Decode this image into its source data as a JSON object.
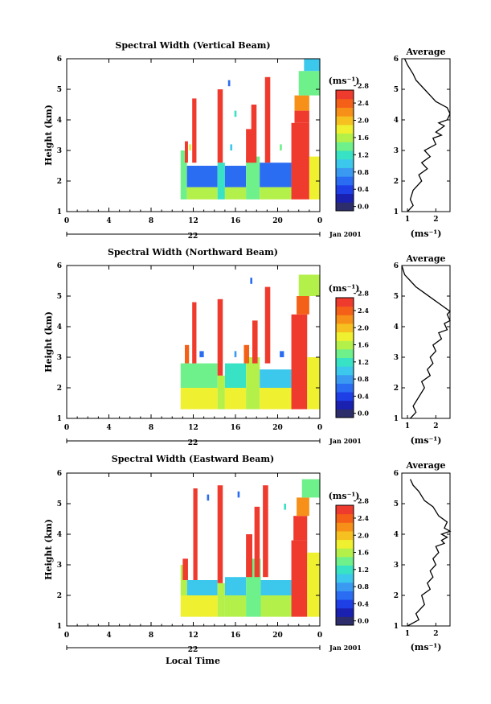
{
  "chart_data": [
    {
      "type": "heatmap",
      "title": "Spectral Width (Vertical Beam)",
      "ylabel": "Height (km)",
      "x_ticks": [
        "0",
        "4",
        "8",
        "12",
        "16",
        "20",
        "0"
      ],
      "y_ticks": [
        "1",
        "2",
        "3",
        "4",
        "5",
        "6"
      ],
      "ylim": [
        1,
        6
      ],
      "xlim": [
        0,
        24
      ],
      "date_label": "22",
      "month_label": "Jan 2001",
      "cells": [
        {
          "x0": 10.8,
          "x1": 11.4,
          "y0": 1.4,
          "y1": 3.0,
          "v": 1.4
        },
        {
          "x0": 11.4,
          "x1": 14.3,
          "y0": 1.4,
          "y1": 1.8,
          "v": 1.6
        },
        {
          "x0": 11.4,
          "x1": 14.3,
          "y0": 1.8,
          "y1": 2.5,
          "v": 0.7
        },
        {
          "x0": 14.3,
          "x1": 15.0,
          "y0": 1.4,
          "y1": 2.6,
          "v": 1.2
        },
        {
          "x0": 15.0,
          "x1": 17.0,
          "y0": 1.4,
          "y1": 1.8,
          "v": 1.6
        },
        {
          "x0": 15.0,
          "x1": 17.0,
          "y0": 1.8,
          "y1": 2.5,
          "v": 0.7
        },
        {
          "x0": 17.0,
          "x1": 18.3,
          "y0": 1.4,
          "y1": 2.8,
          "v": 1.3
        },
        {
          "x0": 18.3,
          "x1": 21.3,
          "y0": 1.4,
          "y1": 1.8,
          "v": 1.5
        },
        {
          "x0": 18.3,
          "x1": 21.3,
          "y0": 1.8,
          "y1": 2.6,
          "v": 0.7
        },
        {
          "x0": 21.3,
          "x1": 23.0,
          "y0": 1.4,
          "y1": 3.9,
          "v": 2.8
        },
        {
          "x0": 21.6,
          "x1": 23.0,
          "y0": 3.9,
          "y1": 4.3,
          "v": 2.5
        },
        {
          "x0": 21.6,
          "x1": 23.0,
          "y0": 4.3,
          "y1": 4.8,
          "v": 2.1
        },
        {
          "x0": 22.0,
          "x1": 24.0,
          "y0": 4.8,
          "y1": 5.6,
          "v": 1.3
        },
        {
          "x0": 22.5,
          "x1": 24.0,
          "y0": 5.6,
          "y1": 6.0,
          "v": 0.9
        },
        {
          "x0": 23.0,
          "x1": 24.0,
          "y0": 1.4,
          "y1": 2.8,
          "v": 1.8
        },
        {
          "x0": 11.9,
          "x1": 12.3,
          "y0": 2.6,
          "y1": 4.7,
          "v": 2.8
        },
        {
          "x0": 11.2,
          "x1": 11.5,
          "y0": 2.6,
          "y1": 3.3,
          "v": 2.6
        },
        {
          "x0": 14.3,
          "x1": 14.8,
          "y0": 2.6,
          "y1": 5.0,
          "v": 2.8
        },
        {
          "x0": 17.0,
          "x1": 17.6,
          "y0": 2.6,
          "y1": 3.7,
          "v": 2.6
        },
        {
          "x0": 17.5,
          "x1": 18.0,
          "y0": 2.6,
          "y1": 4.5,
          "v": 2.8
        },
        {
          "x0": 18.8,
          "x1": 19.3,
          "y0": 2.6,
          "y1": 5.4,
          "v": 2.8
        },
        {
          "x0": 15.9,
          "x1": 16.1,
          "y0": 4.1,
          "y1": 4.3,
          "v": 1.1
        },
        {
          "x0": 15.5,
          "x1": 15.7,
          "y0": 3.0,
          "y1": 3.2,
          "v": 0.9
        },
        {
          "x0": 15.3,
          "x1": 15.5,
          "y0": 5.1,
          "y1": 5.3,
          "v": 0.5
        },
        {
          "x0": 20.2,
          "x1": 20.4,
          "y0": 3.0,
          "y1": 3.2,
          "v": 1.4
        },
        {
          "x0": 11.6,
          "x1": 11.8,
          "y0": 3.0,
          "y1": 3.2,
          "v": 1.8
        }
      ]
    },
    {
      "type": "line",
      "title": "Average",
      "xlabel": "(ms⁻¹)",
      "x_ticks": [
        "1",
        "2"
      ],
      "y_ticks": [
        "1",
        "2",
        "3",
        "4",
        "5",
        "6"
      ],
      "xlim": [
        0.8,
        2.5
      ],
      "ylim": [
        1,
        6
      ],
      "x": [
        1.0,
        1.2,
        1.1,
        1.2,
        1.5,
        1.4,
        1.7,
        1.5,
        1.8,
        1.6,
        2.0,
        1.9,
        2.2,
        2.0,
        2.3,
        2.1,
        2.4,
        2.5,
        2.4,
        2.0,
        1.8,
        1.6,
        1.3,
        1.2,
        1.0,
        0.9
      ],
      "y": [
        1.0,
        1.2,
        1.4,
        1.7,
        2.0,
        2.2,
        2.4,
        2.6,
        2.8,
        3.0,
        3.2,
        3.4,
        3.5,
        3.6,
        3.8,
        3.9,
        4.0,
        4.2,
        4.4,
        4.6,
        4.8,
        5.0,
        5.3,
        5.5,
        5.8,
        6.0
      ]
    },
    {
      "type": "heatmap",
      "title": "Spectral Width (Northward Beam)",
      "ylabel": "Height (km)",
      "x_ticks": [
        "0",
        "4",
        "8",
        "12",
        "16",
        "20",
        "0"
      ],
      "y_ticks": [
        "1",
        "2",
        "3",
        "4",
        "5",
        "6"
      ],
      "ylim": [
        1,
        6
      ],
      "xlim": [
        0,
        24
      ],
      "date_label": "22",
      "month_label": "Jan 2001",
      "cells": [
        {
          "x0": 10.8,
          "x1": 14.3,
          "y0": 1.3,
          "y1": 2.0,
          "v": 1.8
        },
        {
          "x0": 10.8,
          "x1": 14.3,
          "y0": 2.0,
          "y1": 2.8,
          "v": 1.3
        },
        {
          "x0": 14.3,
          "x1": 15.0,
          "y0": 1.3,
          "y1": 2.4,
          "v": 1.6
        },
        {
          "x0": 15.0,
          "x1": 17.0,
          "y0": 1.3,
          "y1": 2.0,
          "v": 1.7
        },
        {
          "x0": 15.0,
          "x1": 17.0,
          "y0": 2.0,
          "y1": 2.8,
          "v": 1.1
        },
        {
          "x0": 17.0,
          "x1": 18.3,
          "y0": 1.3,
          "y1": 3.0,
          "v": 1.5
        },
        {
          "x0": 18.3,
          "x1": 21.3,
          "y0": 1.3,
          "y1": 2.0,
          "v": 1.7
        },
        {
          "x0": 18.3,
          "x1": 21.3,
          "y0": 2.0,
          "y1": 2.6,
          "v": 1.0
        },
        {
          "x0": 21.3,
          "x1": 22.8,
          "y0": 1.3,
          "y1": 4.4,
          "v": 2.8
        },
        {
          "x0": 21.8,
          "x1": 23.0,
          "y0": 4.4,
          "y1": 5.0,
          "v": 2.4
        },
        {
          "x0": 22.0,
          "x1": 24.0,
          "y0": 5.0,
          "y1": 5.7,
          "v": 1.5
        },
        {
          "x0": 22.8,
          "x1": 24.0,
          "y0": 1.3,
          "y1": 3.0,
          "v": 1.9
        },
        {
          "x0": 11.9,
          "x1": 12.3,
          "y0": 2.8,
          "y1": 4.8,
          "v": 2.8
        },
        {
          "x0": 11.2,
          "x1": 11.6,
          "y0": 2.8,
          "y1": 3.4,
          "v": 2.4
        },
        {
          "x0": 14.3,
          "x1": 14.8,
          "y0": 2.4,
          "y1": 4.9,
          "v": 2.8
        },
        {
          "x0": 16.8,
          "x1": 17.3,
          "y0": 2.8,
          "y1": 3.4,
          "v": 2.4
        },
        {
          "x0": 17.6,
          "x1": 18.1,
          "y0": 2.8,
          "y1": 4.2,
          "v": 2.8
        },
        {
          "x0": 18.8,
          "x1": 19.3,
          "y0": 2.8,
          "y1": 5.3,
          "v": 2.8
        },
        {
          "x0": 20.2,
          "x1": 20.6,
          "y0": 3.0,
          "y1": 3.2,
          "v": 0.6
        },
        {
          "x0": 12.6,
          "x1": 13.0,
          "y0": 3.0,
          "y1": 3.2,
          "v": 0.7
        },
        {
          "x0": 17.4,
          "x1": 17.6,
          "y0": 5.4,
          "y1": 5.6,
          "v": 0.5
        },
        {
          "x0": 15.9,
          "x1": 16.1,
          "y0": 3.0,
          "y1": 3.2,
          "v": 0.8
        }
      ]
    },
    {
      "type": "line",
      "title": "Average",
      "xlabel": "(ms⁻¹)",
      "x_ticks": [
        "1",
        "2"
      ],
      "y_ticks": [
        "1",
        "2",
        "3",
        "4",
        "5",
        "6"
      ],
      "xlim": [
        0.8,
        2.5
      ],
      "ylim": [
        1,
        6
      ],
      "x": [
        1.1,
        1.3,
        1.2,
        1.4,
        1.6,
        1.5,
        1.8,
        1.7,
        1.9,
        1.8,
        2.0,
        1.9,
        2.2,
        2.1,
        2.4,
        2.3,
        2.5,
        2.4,
        2.5,
        2.2,
        1.9,
        1.6,
        1.3,
        1.1,
        0.9,
        0.8
      ],
      "y": [
        1.0,
        1.2,
        1.4,
        1.7,
        2.0,
        2.2,
        2.4,
        2.6,
        2.8,
        3.0,
        3.2,
        3.4,
        3.6,
        3.8,
        3.9,
        4.1,
        4.2,
        4.4,
        4.5,
        4.7,
        4.9,
        5.1,
        5.3,
        5.5,
        5.7,
        6.0
      ]
    },
    {
      "type": "heatmap",
      "title": "Spectral Width (Eastward Beam)",
      "xlabel": "Local Time",
      "ylabel": "Height (km)",
      "x_ticks": [
        "0",
        "4",
        "8",
        "12",
        "16",
        "20",
        "0"
      ],
      "y_ticks": [
        "1",
        "2",
        "3",
        "4",
        "5",
        "6"
      ],
      "ylim": [
        1,
        6
      ],
      "xlim": [
        0,
        24
      ],
      "date_label": "22",
      "month_label": "Jan 2001",
      "cells": [
        {
          "x0": 10.8,
          "x1": 14.3,
          "y0": 1.3,
          "y1": 2.0,
          "v": 1.7
        },
        {
          "x0": 11.4,
          "x1": 14.3,
          "y0": 2.0,
          "y1": 2.5,
          "v": 1.0
        },
        {
          "x0": 10.8,
          "x1": 11.4,
          "y0": 2.0,
          "y1": 3.0,
          "v": 1.6
        },
        {
          "x0": 14.3,
          "x1": 15.0,
          "y0": 1.3,
          "y1": 2.4,
          "v": 1.5
        },
        {
          "x0": 15.0,
          "x1": 17.0,
          "y0": 1.3,
          "y1": 2.0,
          "v": 1.6
        },
        {
          "x0": 15.0,
          "x1": 17.0,
          "y0": 2.0,
          "y1": 2.6,
          "v": 0.9
        },
        {
          "x0": 17.0,
          "x1": 18.4,
          "y0": 1.3,
          "y1": 3.2,
          "v": 1.4
        },
        {
          "x0": 18.4,
          "x1": 21.3,
          "y0": 1.3,
          "y1": 2.0,
          "v": 1.5
        },
        {
          "x0": 18.4,
          "x1": 21.3,
          "y0": 2.0,
          "y1": 2.5,
          "v": 0.9
        },
        {
          "x0": 21.3,
          "x1": 22.8,
          "y0": 1.3,
          "y1": 3.8,
          "v": 2.8
        },
        {
          "x0": 21.5,
          "x1": 22.8,
          "y0": 3.8,
          "y1": 4.6,
          "v": 2.5
        },
        {
          "x0": 21.8,
          "x1": 23.0,
          "y0": 4.6,
          "y1": 5.2,
          "v": 2.1
        },
        {
          "x0": 22.3,
          "x1": 24.0,
          "y0": 5.2,
          "y1": 5.8,
          "v": 1.4
        },
        {
          "x0": 22.8,
          "x1": 24.0,
          "y0": 1.3,
          "y1": 3.4,
          "v": 1.9
        },
        {
          "x0": 12.0,
          "x1": 12.4,
          "y0": 2.5,
          "y1": 5.5,
          "v": 2.8
        },
        {
          "x0": 11.0,
          "x1": 11.5,
          "y0": 2.5,
          "y1": 3.2,
          "v": 2.5
        },
        {
          "x0": 14.3,
          "x1": 14.8,
          "y0": 2.4,
          "y1": 5.6,
          "v": 2.8
        },
        {
          "x0": 17.0,
          "x1": 17.6,
          "y0": 2.6,
          "y1": 4.0,
          "v": 2.6
        },
        {
          "x0": 17.8,
          "x1": 18.3,
          "y0": 2.6,
          "y1": 4.9,
          "v": 2.8
        },
        {
          "x0": 18.6,
          "x1": 19.1,
          "y0": 2.6,
          "y1": 5.6,
          "v": 2.8
        },
        {
          "x0": 13.3,
          "x1": 13.5,
          "y0": 5.1,
          "y1": 5.3,
          "v": 0.6
        },
        {
          "x0": 16.2,
          "x1": 16.4,
          "y0": 5.2,
          "y1": 5.4,
          "v": 0.6
        },
        {
          "x0": 20.6,
          "x1": 20.8,
          "y0": 4.8,
          "y1": 5.0,
          "v": 1.1
        }
      ]
    },
    {
      "type": "line",
      "title": "Average",
      "xlabel": "(ms⁻¹)",
      "x_ticks": [
        "1",
        "2"
      ],
      "y_ticks": [
        "1",
        "2",
        "3",
        "4",
        "5",
        "6"
      ],
      "xlim": [
        0.8,
        2.5
      ],
      "ylim": [
        1,
        6
      ],
      "x": [
        1.0,
        1.4,
        1.3,
        1.6,
        1.5,
        1.8,
        1.7,
        1.9,
        1.8,
        2.0,
        1.9,
        2.1,
        2.0,
        2.3,
        2.2,
        2.4,
        2.2,
        2.5,
        2.3,
        2.4,
        2.1,
        1.9,
        1.6,
        1.4,
        1.2,
        1.1
      ],
      "y": [
        1.0,
        1.2,
        1.4,
        1.7,
        2.0,
        2.2,
        2.4,
        2.6,
        2.8,
        3.0,
        3.2,
        3.4,
        3.6,
        3.7,
        3.8,
        3.9,
        4.0,
        4.1,
        4.2,
        4.4,
        4.6,
        4.9,
        5.1,
        5.4,
        5.6,
        5.8
      ]
    }
  ],
  "colorbar": {
    "label": "(ms⁻¹)",
    "ticks": [
      "2.8",
      "2.4",
      "2.0",
      "1.6",
      "1.2",
      "0.8",
      "0.4",
      "0.0"
    ],
    "colors": [
      "#2d2d6b",
      "#1a20b0",
      "#1e3ee6",
      "#2a6cf2",
      "#3a9af2",
      "#3cc8ec",
      "#38e2c4",
      "#6ef08a",
      "#b4f04a",
      "#eef030",
      "#f6c020",
      "#f69018",
      "#f46018",
      "#ef3a2e"
    ]
  }
}
